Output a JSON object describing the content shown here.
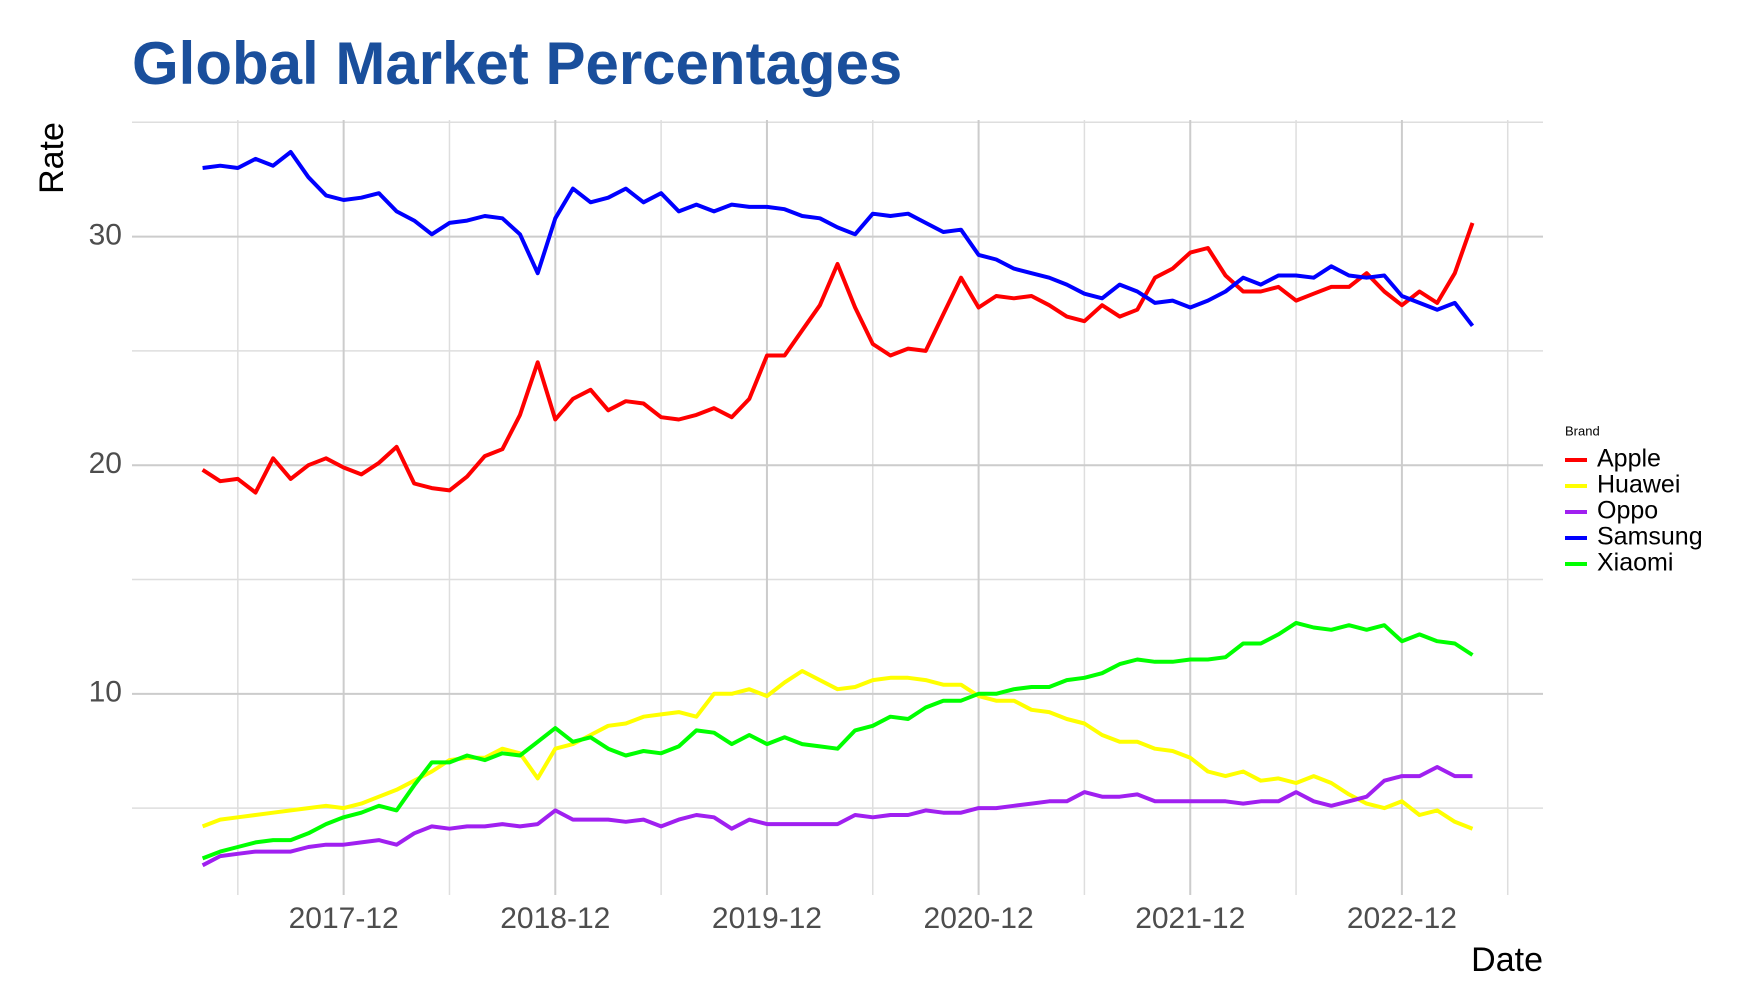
{
  "chart_data": {
    "type": "line",
    "title": "Global Market Percentages",
    "x_label": "Date",
    "y_label": "Rate",
    "legend_title": "Brand",
    "legend": "right",
    "x": [
      "2017-04",
      "2017-05",
      "2017-06",
      "2017-07",
      "2017-08",
      "2017-09",
      "2017-10",
      "2017-11",
      "2017-12",
      "2018-01",
      "2018-02",
      "2018-03",
      "2018-04",
      "2018-05",
      "2018-06",
      "2018-07",
      "2018-08",
      "2018-09",
      "2018-10",
      "2018-11",
      "2018-12",
      "2019-01",
      "2019-02",
      "2019-03",
      "2019-04",
      "2019-05",
      "2019-06",
      "2019-07",
      "2019-08",
      "2019-09",
      "2019-10",
      "2019-11",
      "2019-12",
      "2020-01",
      "2020-02",
      "2020-03",
      "2020-04",
      "2020-05",
      "2020-06",
      "2020-07",
      "2020-08",
      "2020-09",
      "2020-10",
      "2020-11",
      "2020-12",
      "2021-01",
      "2021-02",
      "2021-03",
      "2021-04",
      "2021-05",
      "2021-06",
      "2021-07",
      "2021-08",
      "2021-09",
      "2021-10",
      "2021-11",
      "2021-12",
      "2022-01",
      "2022-02",
      "2022-03",
      "2022-04",
      "2022-05",
      "2022-06",
      "2022-07",
      "2022-08",
      "2022-09",
      "2022-10",
      "2022-11",
      "2022-12",
      "2023-01",
      "2023-02",
      "2023-03",
      "2023-04"
    ],
    "series": [
      {
        "name": "Apple",
        "color": "#ff0000",
        "values": [
          19.8,
          19.3,
          19.4,
          18.8,
          20.3,
          19.4,
          20.0,
          20.3,
          19.9,
          19.6,
          20.1,
          20.8,
          19.2,
          19.0,
          18.9,
          19.5,
          20.4,
          20.7,
          22.2,
          24.5,
          22.0,
          22.9,
          23.3,
          22.4,
          22.8,
          22.7,
          22.1,
          22.0,
          22.2,
          22.5,
          22.1,
          22.9,
          24.8,
          24.8,
          25.9,
          27.0,
          28.8,
          26.9,
          25.3,
          24.8,
          25.1,
          25.0,
          26.6,
          28.2,
          26.9,
          27.4,
          27.3,
          27.4,
          27.0,
          26.5,
          26.3,
          27.0,
          26.5,
          26.8,
          28.2,
          28.6,
          29.3,
          29.5,
          28.3,
          27.6,
          27.6,
          27.8,
          27.2,
          27.5,
          27.8,
          27.8,
          28.4,
          27.6,
          27.0,
          27.6,
          27.1,
          28.4,
          30.6
        ]
      },
      {
        "name": "Huawei",
        "color": "#ffff00",
        "values": [
          4.2,
          4.5,
          4.6,
          4.7,
          4.8,
          4.9,
          5.0,
          5.1,
          5.0,
          5.2,
          5.5,
          5.8,
          6.2,
          6.6,
          7.1,
          7.2,
          7.2,
          7.6,
          7.4,
          6.3,
          7.6,
          7.8,
          8.2,
          8.6,
          8.7,
          9.0,
          9.1,
          9.2,
          9.0,
          10.0,
          10.0,
          10.2,
          9.9,
          10.5,
          11.0,
          10.6,
          10.2,
          10.3,
          10.6,
          10.7,
          10.7,
          10.6,
          10.4,
          10.4,
          9.9,
          9.7,
          9.7,
          9.3,
          9.2,
          8.9,
          8.7,
          8.2,
          7.9,
          7.9,
          7.6,
          7.5,
          7.2,
          6.6,
          6.4,
          6.6,
          6.2,
          6.3,
          6.1,
          6.4,
          6.1,
          5.6,
          5.2,
          5.0,
          5.3,
          4.7,
          4.9,
          4.4,
          4.1
        ]
      },
      {
        "name": "Oppo",
        "color": "#a020f0",
        "values": [
          2.5,
          2.9,
          3.0,
          3.1,
          3.1,
          3.1,
          3.3,
          3.4,
          3.4,
          3.5,
          3.6,
          3.4,
          3.9,
          4.2,
          4.1,
          4.2,
          4.2,
          4.3,
          4.2,
          4.3,
          4.9,
          4.5,
          4.5,
          4.5,
          4.4,
          4.5,
          4.2,
          4.5,
          4.7,
          4.6,
          4.1,
          4.5,
          4.3,
          4.3,
          4.3,
          4.3,
          4.3,
          4.7,
          4.6,
          4.7,
          4.7,
          4.9,
          4.8,
          4.8,
          5.0,
          5.0,
          5.1,
          5.2,
          5.3,
          5.3,
          5.7,
          5.5,
          5.5,
          5.6,
          5.3,
          5.3,
          5.3,
          5.3,
          5.3,
          5.2,
          5.3,
          5.3,
          5.7,
          5.3,
          5.1,
          5.3,
          5.5,
          6.2,
          6.4,
          6.4,
          6.8,
          6.4,
          6.4
        ]
      },
      {
        "name": "Samsung",
        "color": "#0000ff",
        "values": [
          33.0,
          33.1,
          33.0,
          33.4,
          33.1,
          33.7,
          32.6,
          31.8,
          31.6,
          31.7,
          31.9,
          31.1,
          30.7,
          30.1,
          30.6,
          30.7,
          30.9,
          30.8,
          30.1,
          28.4,
          30.8,
          32.1,
          31.5,
          31.7,
          32.1,
          31.5,
          31.9,
          31.1,
          31.4,
          31.1,
          31.4,
          31.3,
          31.3,
          31.2,
          30.9,
          30.8,
          30.4,
          30.1,
          31.0,
          30.9,
          31.0,
          30.6,
          30.2,
          30.3,
          29.2,
          29.0,
          28.6,
          28.4,
          28.2,
          27.9,
          27.5,
          27.3,
          27.9,
          27.6,
          27.1,
          27.2,
          26.9,
          27.2,
          27.6,
          28.2,
          27.9,
          28.3,
          28.3,
          28.2,
          28.7,
          28.3,
          28.2,
          28.3,
          27.4,
          27.1,
          26.8,
          27.1,
          26.1
        ]
      },
      {
        "name": "Xiaomi",
        "color": "#00ff00",
        "values": [
          2.8,
          3.1,
          3.3,
          3.5,
          3.6,
          3.6,
          3.9,
          4.3,
          4.6,
          4.8,
          5.1,
          4.9,
          6.0,
          7.0,
          7.0,
          7.3,
          7.1,
          7.4,
          7.3,
          7.9,
          8.5,
          7.9,
          8.1,
          7.6,
          7.3,
          7.5,
          7.4,
          7.7,
          8.4,
          8.3,
          7.8,
          8.2,
          7.8,
          8.1,
          7.8,
          7.7,
          7.6,
          8.4,
          8.6,
          9.0,
          8.9,
          9.4,
          9.7,
          9.7,
          10.0,
          10.0,
          10.2,
          10.3,
          10.3,
          10.6,
          10.7,
          10.9,
          11.3,
          11.5,
          11.4,
          11.4,
          11.5,
          11.5,
          11.6,
          12.2,
          12.2,
          12.6,
          13.1,
          12.9,
          12.8,
          13.0,
          12.8,
          13.0,
          12.3,
          12.6,
          12.3,
          12.2,
          11.7
        ]
      }
    ],
    "xlim": [
      "2016-12",
      "2023-08"
    ],
    "xticks": [
      "2017-12",
      "2018-12",
      "2019-12",
      "2020-12",
      "2021-12",
      "2022-12"
    ],
    "ylim": [
      1.2,
      35.1
    ],
    "yticks": [
      10,
      20,
      30
    ],
    "grid": true,
    "minor_grid": true
  }
}
